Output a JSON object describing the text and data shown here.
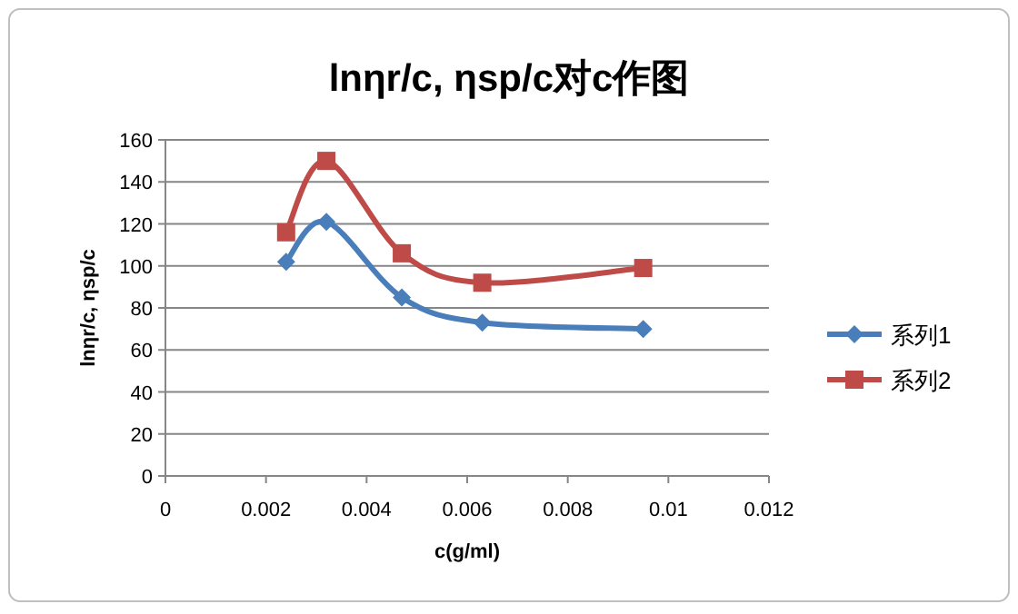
{
  "chart_data": {
    "type": "line",
    "title": "lnηr/c, ηsp/c对c作图",
    "xlabel": "c(g/ml)",
    "ylabel": "lnηr/c, ηsp/c",
    "x": [
      0.0024,
      0.0032,
      0.0047,
      0.0063,
      0.0095
    ],
    "series": [
      {
        "name": "系列1",
        "color": "#4a7ebb",
        "marker": "diamond",
        "values": [
          102,
          121,
          85,
          73,
          70
        ]
      },
      {
        "name": "系列2",
        "color": "#be4b48",
        "marker": "square",
        "values": [
          116,
          150,
          106,
          92,
          99
        ]
      }
    ],
    "xlim": [
      0,
      0.012
    ],
    "xticks": [
      0,
      0.002,
      0.004,
      0.006,
      0.008,
      0.01,
      0.012
    ],
    "ylim": [
      0,
      160
    ],
    "yticks": [
      0,
      20,
      40,
      60,
      80,
      100,
      120,
      140,
      160
    ],
    "grid": "y",
    "legend": "right"
  }
}
